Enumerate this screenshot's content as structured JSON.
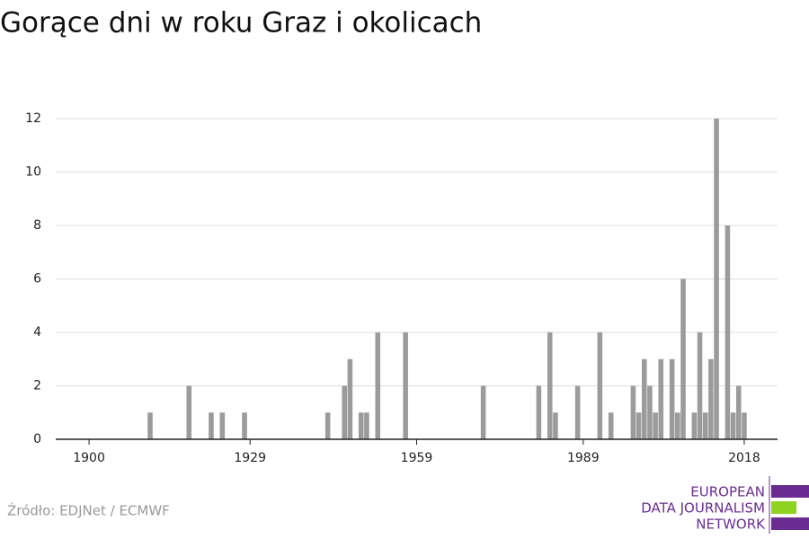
{
  "chart_data": {
    "type": "bar",
    "title": "Gorące dni w roku Graz i okolicach",
    "x": [
      1911,
      1918,
      1922,
      1924,
      1928,
      1943,
      1946,
      1947,
      1949,
      1950,
      1952,
      1957,
      1971,
      1981,
      1983,
      1984,
      1988,
      1992,
      1994,
      1998,
      1999,
      2000,
      2001,
      2002,
      2003,
      2005,
      2006,
      2007,
      2009,
      2010,
      2011,
      2012,
      2013,
      2015,
      2016,
      2017,
      2018
    ],
    "values": [
      1,
      2,
      1,
      1,
      1,
      1,
      2,
      3,
      1,
      1,
      4,
      4,
      2,
      2,
      4,
      1,
      2,
      4,
      1,
      2,
      1,
      3,
      2,
      1,
      3,
      3,
      1,
      6,
      1,
      4,
      1,
      3,
      12,
      8,
      1,
      2,
      1
    ],
    "color": "#9b9b9b",
    "xlim": [
      1894,
      2024
    ],
    "xticks": [
      1900,
      1929,
      1959,
      1989,
      2018
    ],
    "ylim": [
      0,
      12
    ],
    "yticks": [
      0,
      2,
      4,
      6,
      8,
      10,
      12
    ],
    "grid": true,
    "source": "Źródło: EDJNet / ECMWF",
    "logo": [
      "EUROPEAN",
      "DATA JOURNALISM",
      "NETWORK"
    ]
  }
}
